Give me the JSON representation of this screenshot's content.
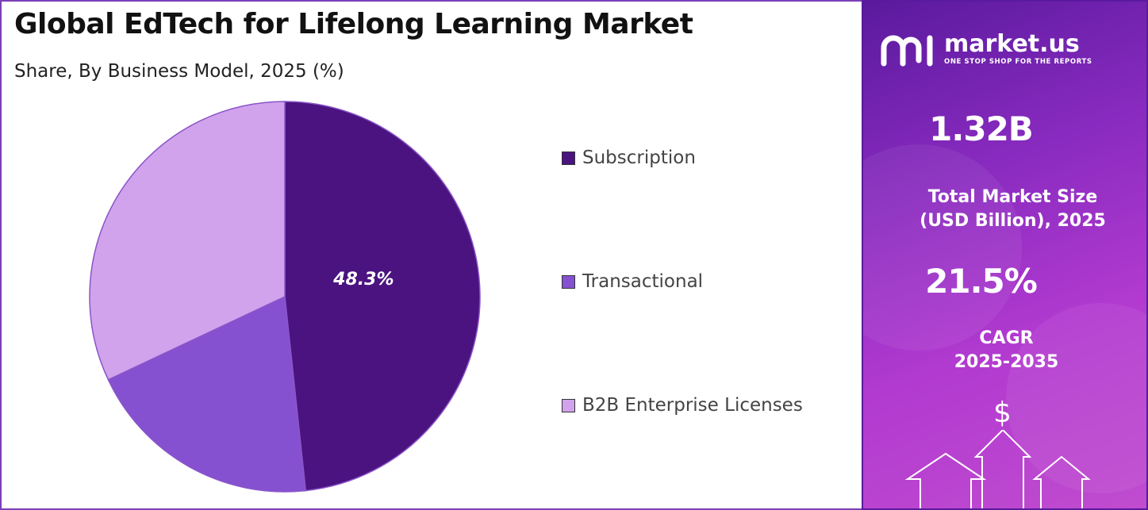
{
  "chart": {
    "title": "Global EdTech for Lifelong Learning Market",
    "subtitle": "Share, By Business Model, 2025 (%)"
  },
  "chart_data": {
    "type": "pie",
    "title": "Global EdTech for Lifelong Learning Market",
    "subtitle": "Share, By Business Model, 2025 (%)",
    "categories": [
      "Subscription",
      "Transactional",
      "B2B Enterprise Licenses"
    ],
    "values": [
      48.3,
      19.7,
      32.0
    ],
    "value_labels": [
      "48.3%",
      "",
      ""
    ],
    "colors": [
      "#4b1380",
      "#8651d1",
      "#d1a3ec"
    ],
    "legend_position": "right",
    "start_angle": "12 o'clock",
    "direction": "clockwise"
  },
  "info": {
    "brand_name": "market.us",
    "brand_tagline": "ONE STOP SHOP FOR THE REPORTS",
    "market_size_value": "1.32B",
    "market_size_label_line1": "Total Market Size",
    "market_size_label_line2": "(USD Billion), 2025",
    "cagr_value": "21.5%",
    "cagr_label_line1": "CAGR",
    "cagr_label_line2": "2025-2035",
    "dollar_symbol": "$"
  }
}
